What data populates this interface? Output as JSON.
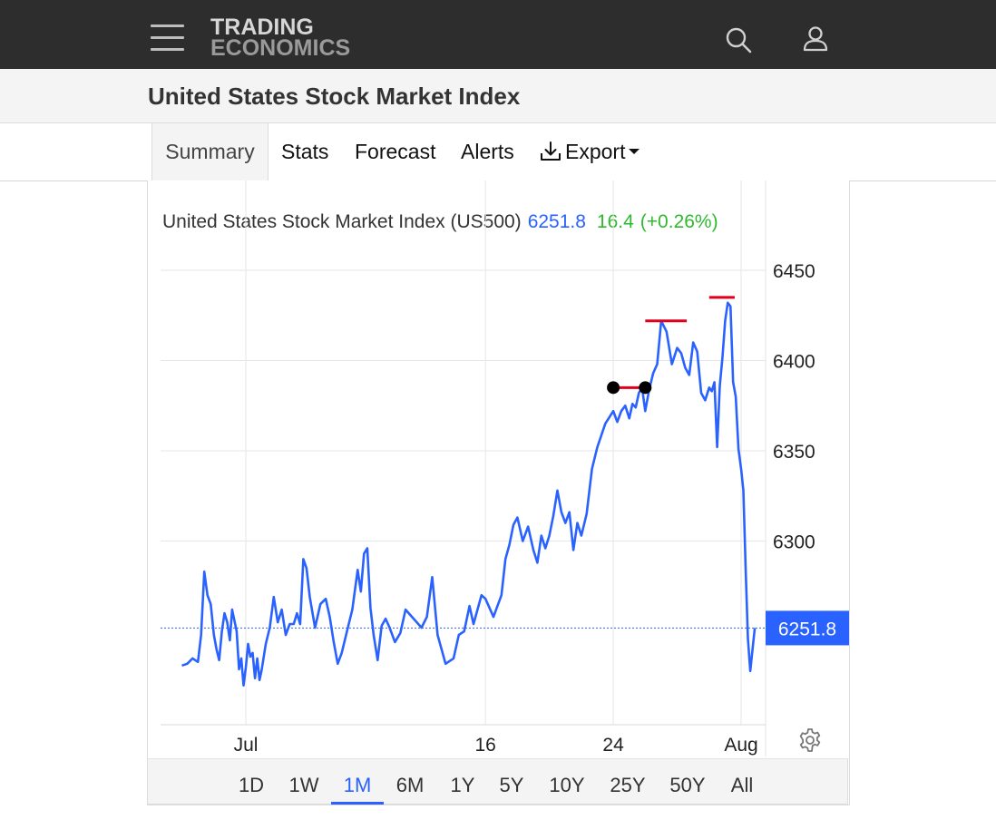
{
  "header": {
    "logo_line1": "TRADING",
    "logo_line2": "ECONOMICS",
    "menu_icon": "hamburger-menu-icon",
    "search_icon": "search-icon",
    "user_icon": "user-icon"
  },
  "page": {
    "title": "United States Stock Market Index"
  },
  "tabs": [
    {
      "label": "Summary",
      "active": true
    },
    {
      "label": "Stats"
    },
    {
      "label": "Forecast"
    },
    {
      "label": "Alerts"
    },
    {
      "label": "Export",
      "icon": "download-icon"
    }
  ],
  "ranges": [
    {
      "label": "1D"
    },
    {
      "label": "1W"
    },
    {
      "label": "1M",
      "active": true
    },
    {
      "label": "6M"
    },
    {
      "label": "1Y"
    },
    {
      "label": "5Y"
    },
    {
      "label": "10Y"
    },
    {
      "label": "25Y"
    },
    {
      "label": "50Y"
    },
    {
      "label": "All"
    }
  ],
  "colors": {
    "line": "#2962ff",
    "gain": "#2fb92f",
    "marker": "#e0001b",
    "current_badge": "#2962ff"
  },
  "chart_data": {
    "type": "line",
    "title_name": "United States Stock Market Index (US500)",
    "last_value": "6251.8",
    "change": "16.4",
    "change_percent": "(+0.26%)",
    "ylim": [
      6200,
      6450
    ],
    "yticks": [
      6300,
      6350,
      6400,
      6450
    ],
    "ytick_labels": [
      "6300",
      "6350",
      "6400",
      "6450"
    ],
    "x_dates": [
      "2025-06-27",
      "2025-08-01"
    ],
    "xticks": [
      {
        "date": "2025-07-01",
        "label": "Jul"
      },
      {
        "date": "2025-07-16",
        "label": "16"
      },
      {
        "date": "2025-07-24",
        "label": "24"
      },
      {
        "date": "2025-08-01",
        "label": "Aug"
      }
    ],
    "grid": true,
    "current_value": 6251.8,
    "series": [
      {
        "points": [
          [
            "2025-06-27",
            6231
          ],
          [
            "2025-06-27",
            6232
          ],
          [
            "2025-06-27",
            6235
          ],
          [
            "2025-06-28",
            6233
          ],
          [
            "2025-06-28",
            6248
          ],
          [
            "2025-06-28",
            6283
          ],
          [
            "2025-06-28",
            6270
          ],
          [
            "2025-06-28",
            6265
          ],
          [
            "2025-06-29",
            6248
          ],
          [
            "2025-06-29",
            6240
          ],
          [
            "2025-06-29",
            6234
          ],
          [
            "2025-06-29",
            6250
          ],
          [
            "2025-06-29",
            6260
          ],
          [
            "2025-06-29",
            6255
          ],
          [
            "2025-06-30",
            6245
          ],
          [
            "2025-06-30",
            6262
          ],
          [
            "2025-06-30",
            6256
          ],
          [
            "2025-06-30",
            6250
          ],
          [
            "2025-06-30",
            6229
          ],
          [
            "2025-06-30",
            6235
          ],
          [
            "2025-06-30",
            6220
          ],
          [
            "2025-07-01",
            6230
          ],
          [
            "2025-07-01",
            6243
          ],
          [
            "2025-07-01",
            6236
          ],
          [
            "2025-07-01",
            6238
          ],
          [
            "2025-07-01",
            6224
          ],
          [
            "2025-07-01",
            6235
          ],
          [
            "2025-07-01",
            6223
          ],
          [
            "2025-07-02",
            6229
          ],
          [
            "2025-07-02",
            6243
          ],
          [
            "2025-07-02",
            6252
          ],
          [
            "2025-07-02",
            6269
          ],
          [
            "2025-07-03",
            6255
          ],
          [
            "2025-07-03",
            6262
          ],
          [
            "2025-07-03",
            6248
          ],
          [
            "2025-07-03",
            6254
          ],
          [
            "2025-07-04",
            6254
          ],
          [
            "2025-07-04",
            6260
          ],
          [
            "2025-07-04",
            6254
          ],
          [
            "2025-07-04",
            6290
          ],
          [
            "2025-07-04",
            6285
          ],
          [
            "2025-07-05",
            6269
          ],
          [
            "2025-07-05",
            6252
          ],
          [
            "2025-07-05",
            6265
          ],
          [
            "2025-07-06",
            6268
          ],
          [
            "2025-07-06",
            6258
          ],
          [
            "2025-07-06",
            6244
          ],
          [
            "2025-07-06",
            6232
          ],
          [
            "2025-07-07",
            6238
          ],
          [
            "2025-07-07",
            6250
          ],
          [
            "2025-07-07",
            6262
          ],
          [
            "2025-07-08",
            6284
          ],
          [
            "2025-07-08",
            6272
          ],
          [
            "2025-07-08",
            6293
          ],
          [
            "2025-07-08",
            6296
          ],
          [
            "2025-07-08",
            6263
          ],
          [
            "2025-07-09",
            6248
          ],
          [
            "2025-07-09",
            6234
          ],
          [
            "2025-07-09",
            6253
          ],
          [
            "2025-07-09",
            6257
          ],
          [
            "2025-07-10",
            6252
          ],
          [
            "2025-07-10",
            6244
          ],
          [
            "2025-07-10",
            6249
          ],
          [
            "2025-07-11",
            6262
          ],
          [
            "2025-07-12",
            6252
          ],
          [
            "2025-07-12",
            6258
          ],
          [
            "2025-07-12",
            6280
          ],
          [
            "2025-07-13",
            6248
          ],
          [
            "2025-07-13",
            6232
          ],
          [
            "2025-07-14",
            6235
          ],
          [
            "2025-07-14",
            6248
          ],
          [
            "2025-07-14",
            6250
          ],
          [
            "2025-07-15",
            6264
          ],
          [
            "2025-07-15",
            6254
          ],
          [
            "2025-07-15",
            6262
          ],
          [
            "2025-07-15",
            6270
          ],
          [
            "2025-07-16",
            6268
          ],
          [
            "2025-07-16",
            6258
          ],
          [
            "2025-07-17",
            6270
          ],
          [
            "2025-07-17",
            6290
          ],
          [
            "2025-07-17",
            6298
          ],
          [
            "2025-07-17",
            6309
          ],
          [
            "2025-07-18",
            6313
          ],
          [
            "2025-07-18",
            6300
          ],
          [
            "2025-07-18",
            6308
          ],
          [
            "2025-07-19",
            6295
          ],
          [
            "2025-07-19",
            6288
          ],
          [
            "2025-07-19",
            6303
          ],
          [
            "2025-07-19",
            6296
          ],
          [
            "2025-07-20",
            6303
          ],
          [
            "2025-07-20",
            6314
          ],
          [
            "2025-07-20",
            6328
          ],
          [
            "2025-07-20",
            6316
          ],
          [
            "2025-07-21",
            6310
          ],
          [
            "2025-07-21",
            6316
          ],
          [
            "2025-07-21",
            6295
          ],
          [
            "2025-07-21",
            6310
          ],
          [
            "2025-07-22",
            6303
          ],
          [
            "2025-07-22",
            6315
          ],
          [
            "2025-07-22",
            6340
          ],
          [
            "2025-07-23",
            6352
          ],
          [
            "2025-07-23",
            6365
          ],
          [
            "2025-07-24",
            6372
          ],
          [
            "2025-07-24",
            6366
          ],
          [
            "2025-07-24",
            6372
          ],
          [
            "2025-07-24",
            6375
          ],
          [
            "2025-07-25",
            6368
          ],
          [
            "2025-07-25",
            6376
          ],
          [
            "2025-07-25",
            6374
          ],
          [
            "2025-07-25",
            6382
          ],
          [
            "2025-07-25",
            6385
          ],
          [
            "2025-07-26",
            6372
          ],
          [
            "2025-07-26",
            6384
          ],
          [
            "2025-07-26",
            6393
          ],
          [
            "2025-07-26",
            6398
          ],
          [
            "2025-07-27",
            6422
          ],
          [
            "2025-07-27",
            6416
          ],
          [
            "2025-07-27",
            6398
          ],
          [
            "2025-07-28",
            6407
          ],
          [
            "2025-07-28",
            6404
          ],
          [
            "2025-07-28",
            6396
          ],
          [
            "2025-07-28",
            6392
          ],
          [
            "2025-07-29",
            6410
          ],
          [
            "2025-07-29",
            6405
          ],
          [
            "2025-07-29",
            6382
          ],
          [
            "2025-07-29",
            6378
          ],
          [
            "2025-07-30",
            6385
          ],
          [
            "2025-07-30",
            6383
          ],
          [
            "2025-07-30",
            6388
          ],
          [
            "2025-07-30",
            6352
          ],
          [
            "2025-07-30",
            6386
          ],
          [
            "2025-07-30",
            6402
          ],
          [
            "2025-07-31",
            6422
          ],
          [
            "2025-07-31",
            6432
          ],
          [
            "2025-07-31",
            6430
          ],
          [
            "2025-07-31",
            6388
          ],
          [
            "2025-07-31",
            6380
          ],
          [
            "2025-07-31",
            6351
          ],
          [
            "2025-08-01",
            6340
          ],
          [
            "2025-08-01",
            6328
          ],
          [
            "2025-08-01",
            6285
          ],
          [
            "2025-08-01",
            6246
          ],
          [
            "2025-08-01",
            6228
          ],
          [
            "2025-08-01",
            6240
          ],
          [
            "2025-08-01",
            6251.8
          ]
        ]
      }
    ],
    "markers": {
      "segment": [
        [
          "2025-07-24",
          6385
        ],
        [
          "2025-07-26",
          6385
        ]
      ],
      "resistance_levels": [
        {
          "from": "2025-07-26",
          "to": "2025-07-28",
          "y": 6422
        },
        {
          "from": "2025-07-30",
          "to": "2025-07-31",
          "y": 6435
        }
      ]
    }
  }
}
